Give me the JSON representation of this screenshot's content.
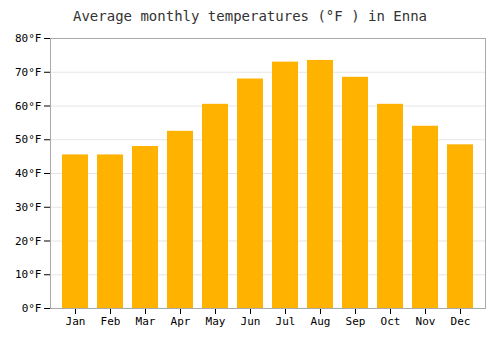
{
  "chart_data": {
    "type": "bar",
    "title": "Average monthly temperatures (°F ) in Enna",
    "categories": [
      "Jan",
      "Feb",
      "Mar",
      "Apr",
      "May",
      "Jun",
      "Jul",
      "Aug",
      "Sep",
      "Oct",
      "Nov",
      "Dec"
    ],
    "values": [
      45.5,
      45.5,
      48.0,
      52.5,
      60.5,
      68.0,
      73.0,
      73.5,
      68.5,
      60.5,
      54.0,
      48.5
    ],
    "color": "#FFB300",
    "ylim": [
      0,
      80
    ],
    "yticks": [
      {
        "value": 0,
        "label": "0°F"
      },
      {
        "value": 10,
        "label": "10°F"
      },
      {
        "value": 20,
        "label": "20°F"
      },
      {
        "value": 30,
        "label": "30°F"
      },
      {
        "value": 40,
        "label": "40°F"
      },
      {
        "value": 50,
        "label": "50°F"
      },
      {
        "value": 60,
        "label": "60°F"
      },
      {
        "value": 70,
        "label": "70°F"
      },
      {
        "value": 80,
        "label": "80°F"
      }
    ],
    "grid": true
  }
}
